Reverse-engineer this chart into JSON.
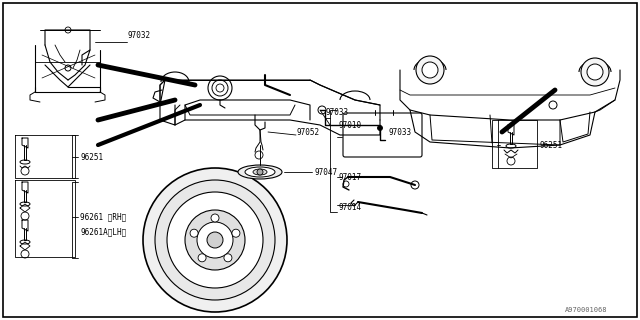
{
  "bg_color": "#ffffff",
  "border_color": "#000000",
  "line_color": "#000000",
  "fig_width": 6.4,
  "fig_height": 3.2,
  "dpi": 100,
  "watermark": "A970001068",
  "fs_label": 5.5,
  "fs_watermark": 5.0
}
